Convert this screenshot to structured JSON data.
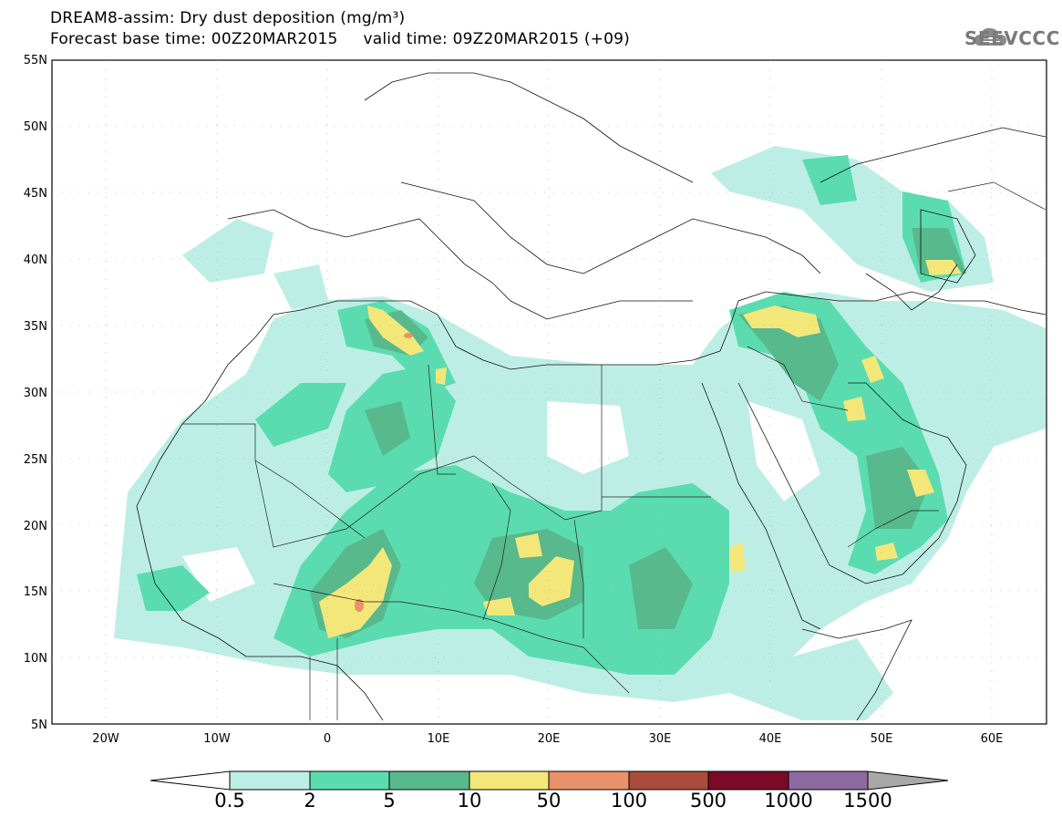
{
  "header": {
    "title_line1": "DREAM8-assim: Dry dust deposition (mg/m³)",
    "title_line2": "Forecast base time: 00Z20MAR2015     valid time: 09Z20MAR2015 (+09)"
  },
  "logo": {
    "text": "SEEVCCC",
    "icon": "cloud-icon"
  },
  "map": {
    "lat_labels": [
      "55N",
      "50N",
      "45N",
      "40N",
      "35N",
      "30N",
      "25N",
      "20N",
      "15N",
      "10N",
      "5N"
    ],
    "lon_labels": [
      "20W",
      "10W",
      "0",
      "10E",
      "20E",
      "30E",
      "40E",
      "50E",
      "60E"
    ]
  },
  "colorbar": {
    "levels": [
      "0.5",
      "2",
      "5",
      "10",
      "50",
      "100",
      "500",
      "1000",
      "1500"
    ],
    "colors": [
      "#bdeee5",
      "#5bdcb0",
      "#57b98c",
      "#f3e77a",
      "#e8916a",
      "#a94c3b",
      "#7a0a28",
      "#8c6a9e",
      "#a8a8a8"
    ]
  }
}
